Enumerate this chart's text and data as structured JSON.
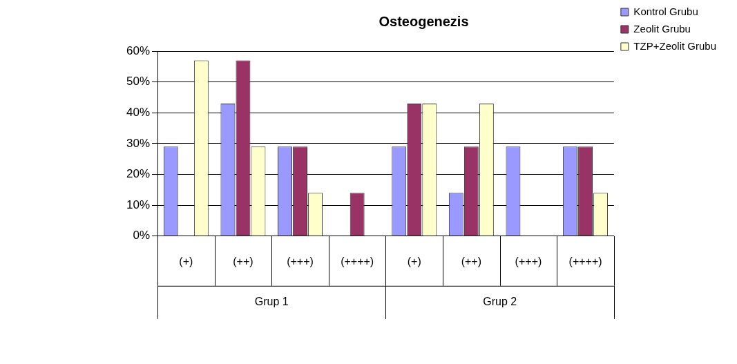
{
  "chart_data": {
    "type": "bar",
    "title": "Osteogenezis",
    "categories": [
      "(+)",
      "(++)",
      "(+++)",
      "(++++)",
      "(+)",
      "(++)",
      "(+++)",
      "(++++)"
    ],
    "series": [
      {
        "name": "Kontrol Grubu",
        "color": "#9999ff",
        "values": [
          29,
          43,
          29,
          0,
          29,
          14,
          29,
          29
        ]
      },
      {
        "name": "Zeolit Grubu",
        "color": "#993366",
        "values": [
          0,
          57,
          29,
          14,
          43,
          29,
          0,
          29
        ]
      },
      {
        "name": "TZP+Zeolit Grubu",
        "color": "#ffffcc",
        "values": [
          57,
          29,
          14,
          0,
          43,
          43,
          0,
          14
        ]
      }
    ],
    "ylim": [
      0,
      60
    ],
    "yticks": [
      {
        "value": 0,
        "label": "0%"
      },
      {
        "value": 10,
        "label": "10%"
      },
      {
        "value": 20,
        "label": "20%"
      },
      {
        "value": 30,
        "label": "30%"
      },
      {
        "value": 40,
        "label": "40%"
      },
      {
        "value": 50,
        "label": "50%"
      },
      {
        "value": 60,
        "label": "60%"
      }
    ],
    "annotations": [
      "Grup 1",
      "Grup 2"
    ],
    "grid": "y",
    "legend": "top right"
  }
}
